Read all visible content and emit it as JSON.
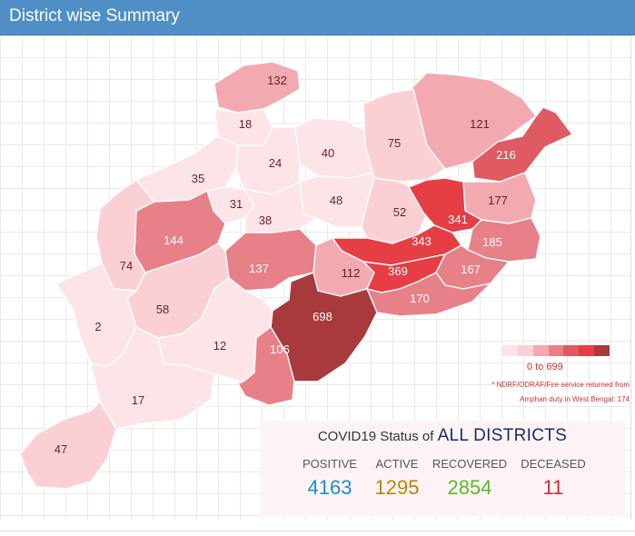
{
  "header": {
    "title": "District wise Summary"
  },
  "colors": {
    "header_bg": "#4f8fc6",
    "positive": "#1a8fc4",
    "active": "#b8860b",
    "recovered": "#5cb82a",
    "deceased": "#d12b2b",
    "scale": [
      "#fde4e7",
      "#fbd0d5",
      "#f3a9b0",
      "#e88088",
      "#df5a62",
      "#e53e45",
      "#a83a3d"
    ]
  },
  "districts": [
    {
      "value": "132",
      "level": 2
    },
    {
      "value": "121",
      "level": 2
    },
    {
      "value": "18",
      "level": 0
    },
    {
      "value": "40",
      "level": 0
    },
    {
      "value": "75",
      "level": 1
    },
    {
      "value": "216",
      "level": 4
    },
    {
      "value": "24",
      "level": 0
    },
    {
      "value": "35",
      "level": 0
    },
    {
      "value": "48",
      "level": 0
    },
    {
      "value": "177",
      "level": 2
    },
    {
      "value": "31",
      "level": 0
    },
    {
      "value": "52",
      "level": 1
    },
    {
      "value": "341",
      "level": 5
    },
    {
      "value": "38",
      "level": 0
    },
    {
      "value": "144",
      "level": 3
    },
    {
      "value": "343",
      "level": 5
    },
    {
      "value": "185",
      "level": 3
    },
    {
      "value": "74",
      "level": 1
    },
    {
      "value": "137",
      "level": 3
    },
    {
      "value": "112",
      "level": 2
    },
    {
      "value": "369",
      "level": 5
    },
    {
      "value": "167",
      "level": 3
    },
    {
      "value": "58",
      "level": 1
    },
    {
      "value": "170",
      "level": 3
    },
    {
      "value": "698",
      "level": 6
    },
    {
      "value": "2",
      "level": 0
    },
    {
      "value": "12",
      "level": 0
    },
    {
      "value": "106",
      "level": 3
    },
    {
      "value": "17",
      "level": 0
    },
    {
      "value": "47",
      "level": 1
    }
  ],
  "legend": {
    "range": "0 to 699",
    "note_line1": "* NDRF/ODRAF/Fire service returned from",
    "note_line2": "Amphan duty in West Bengal: 174"
  },
  "status": {
    "prefix": "COVID19 Status of",
    "scope": "ALL DISTRICTS",
    "positive_label": "POSITIVE",
    "positive_value": "4163",
    "active_label": "ACTIVE",
    "active_value": "1295",
    "recovered_label": "RECOVERED",
    "recovered_value": "2854",
    "deceased_label": "DECEASED",
    "deceased_value": "11"
  }
}
